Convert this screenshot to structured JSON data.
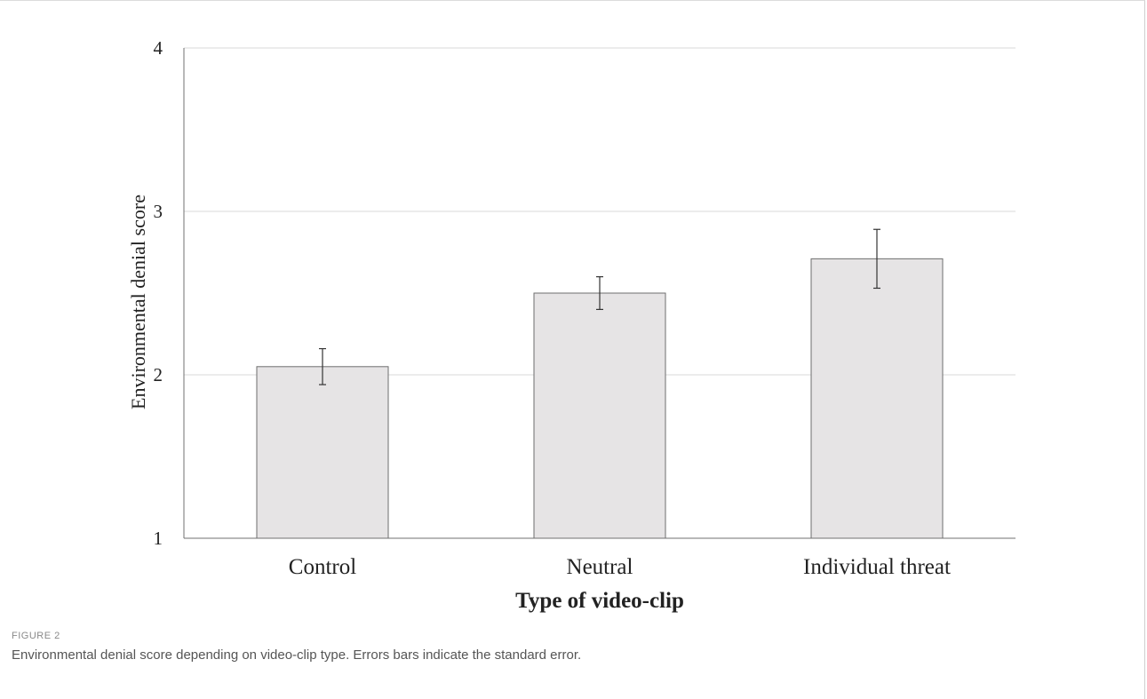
{
  "figure": {
    "label": "FIGURE 2",
    "caption": "Environmental denial score depending on video-clip type. Errors bars indicate the standard error."
  },
  "chart_data": {
    "type": "bar",
    "title": "",
    "xlabel": "Type of video-clip",
    "ylabel": "Environmental denial score",
    "categories": [
      "Control",
      "Neutral",
      "Individual threat"
    ],
    "values": [
      2.05,
      2.5,
      2.71
    ],
    "error": [
      0.11,
      0.1,
      0.18
    ],
    "ylim": [
      1,
      4
    ],
    "yticks": [
      "1",
      "2",
      "3",
      "4"
    ],
    "grid": true,
    "legend": "none",
    "colors": {
      "bar_fill": "#e6e4e5",
      "bar_edge": "#6e6e6e",
      "grid": "#d9d9d9",
      "axis": "#707070",
      "text": "#222222"
    }
  }
}
